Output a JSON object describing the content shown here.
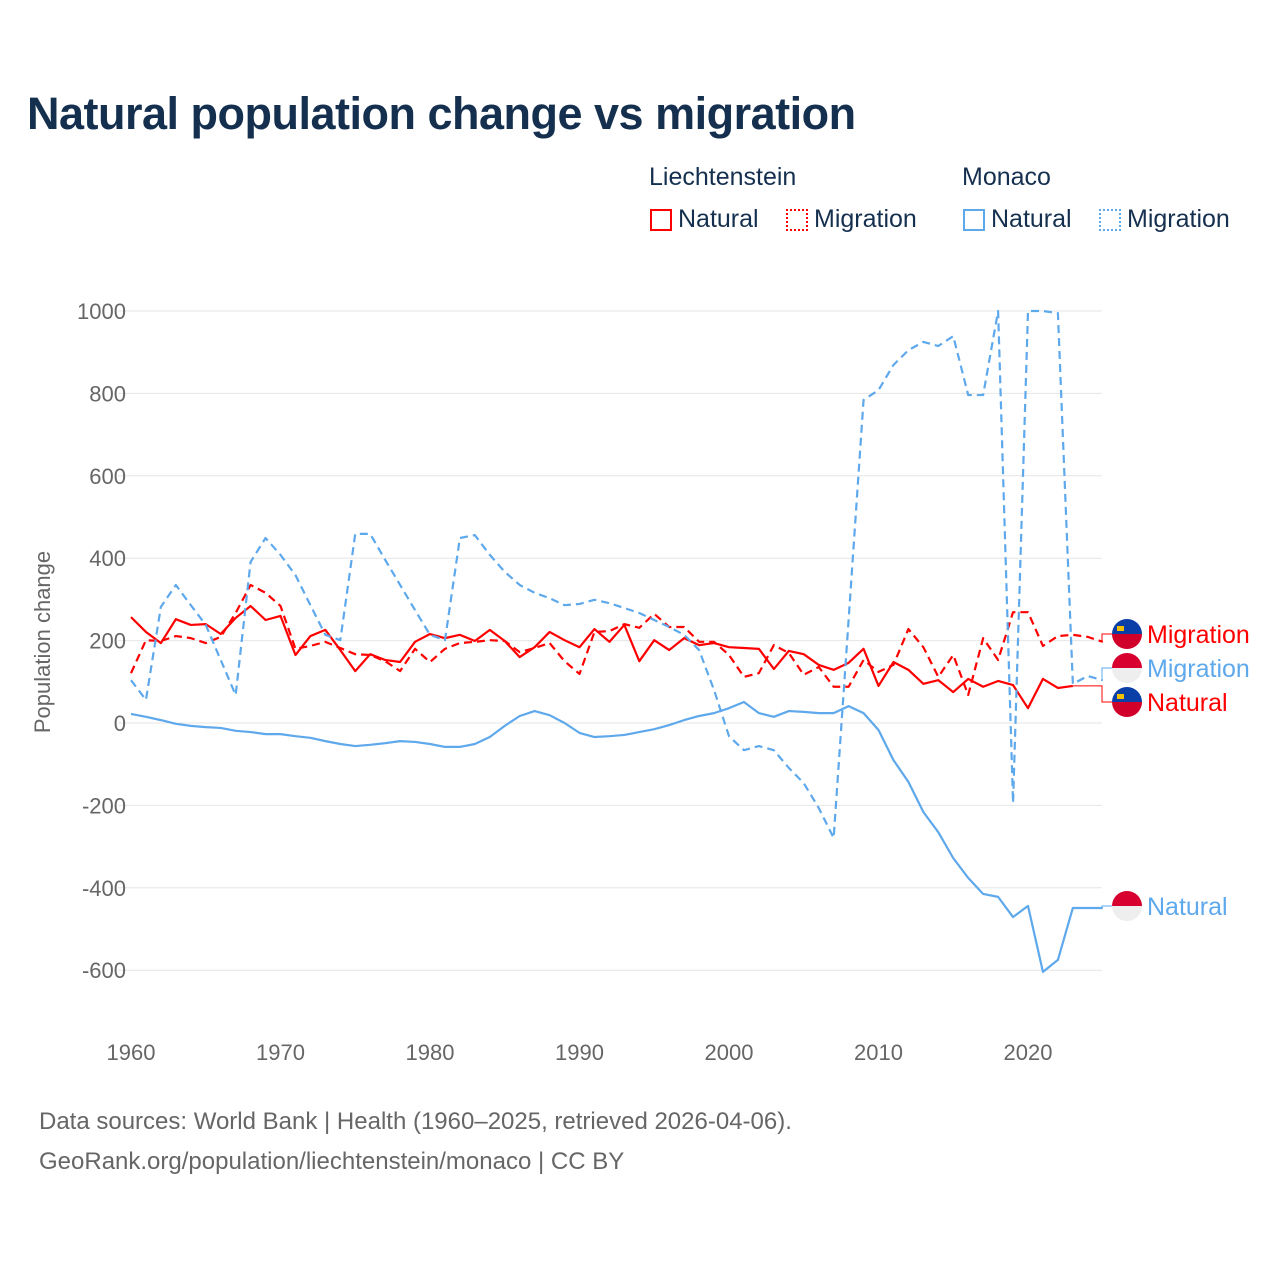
{
  "chart_data": {
    "type": "line",
    "title": "Natural population change vs migration",
    "ylabel": "Population change",
    "xlabel": "",
    "ylim": [
      -700,
      1000
    ],
    "xlim": [
      1960,
      2025
    ],
    "yticks": [
      1000,
      800,
      600,
      400,
      200,
      0,
      -200,
      -400,
      -600
    ],
    "xticks": [
      1960,
      1970,
      1980,
      1990,
      2000,
      2010,
      2020
    ],
    "grid": true,
    "legend_groups": [
      {
        "name": "Liechtenstein",
        "color": "#ff0000",
        "items": [
          "Natural",
          "Migration"
        ]
      },
      {
        "name": "Monaco",
        "color": "#5ea8ec",
        "items": [
          "Natural",
          "Migration"
        ]
      }
    ],
    "series": [
      {
        "country": "Liechtenstein",
        "name": "Natural",
        "color": "#ff0000",
        "dash": false,
        "start": 1960,
        "end_label": "Natural",
        "values": [
          257,
          221,
          194,
          252,
          238,
          240,
          216,
          255,
          284,
          250,
          260,
          165,
          211,
          226,
          177,
          126,
          167,
          153,
          148,
          197,
          216,
          206,
          214,
          199,
          226,
          199,
          160,
          184,
          221,
          201,
          184,
          228,
          197,
          238,
          150,
          201,
          177,
          206,
          189,
          194,
          184,
          182,
          180,
          131,
          175,
          167,
          141,
          129,
          146,
          180,
          90,
          148,
          129,
          95,
          104,
          75,
          107,
          88,
          102,
          92,
          36,
          107,
          85,
          90
        ]
      },
      {
        "country": "Liechtenstein",
        "name": "Migration",
        "color": "#ff0000",
        "dash": true,
        "start": 1960,
        "end_label": "Migration",
        "values": [
          121,
          201,
          199,
          211,
          206,
          194,
          209,
          267,
          335,
          316,
          284,
          180,
          187,
          197,
          182,
          167,
          165,
          150,
          126,
          180,
          148,
          180,
          194,
          197,
          201,
          199,
          172,
          182,
          194,
          150,
          119,
          221,
          223,
          240,
          231,
          265,
          233,
          233,
          197,
          197,
          165,
          112,
          121,
          189,
          170,
          117,
          136,
          88,
          88,
          153,
          124,
          141,
          228,
          184,
          112,
          165,
          68,
          206,
          153,
          269,
          269,
          187,
          211,
          214,
          209,
          197
        ]
      },
      {
        "country": "Monaco",
        "name": "Natural",
        "color": "#5ea8ec",
        "dash": false,
        "start": 1960,
        "end_label": "Natural",
        "values": [
          22,
          15,
          7,
          -2,
          -7,
          -10,
          -12,
          -19,
          -22,
          -27,
          -27,
          -32,
          -36,
          -44,
          -51,
          -56,
          -53,
          -49,
          -44,
          -46,
          -51,
          -58,
          -58,
          -51,
          -34,
          -7,
          17,
          29,
          19,
          0,
          -24,
          -34,
          -32,
          -29,
          -22,
          -15,
          -5,
          7,
          17,
          24,
          36,
          51,
          24,
          15,
          29,
          27,
          24,
          24,
          41,
          24,
          -17,
          -90,
          -143,
          -216,
          -265,
          -328,
          -376,
          -415,
          -422,
          -471,
          -444,
          -604,
          -575,
          -449,
          -449,
          -449
        ]
      },
      {
        "country": "Monaco",
        "name": "Migration",
        "color": "#5ea8ec",
        "dash": true,
        "start": 1960,
        "end_label": "Migration",
        "values": [
          104,
          56,
          282,
          335,
          286,
          238,
          153,
          68,
          391,
          449,
          408,
          359,
          286,
          214,
          201,
          459,
          459,
          396,
          335,
          274,
          214,
          201,
          449,
          456,
          408,
          367,
          335,
          316,
          303,
          286,
          289,
          299,
          291,
          279,
          267,
          250,
          233,
          214,
          177,
          80,
          -32,
          -66,
          -56,
          -66,
          -109,
          -146,
          -206,
          -279,
          250,
          784,
          808,
          869,
          905,
          925,
          915,
          939,
          796,
          796,
          1000,
          -194,
          1000,
          1000,
          995,
          95,
          114,
          104
        ]
      }
    ]
  },
  "legend": {
    "group1": "Liechtenstein",
    "group2": "Monaco",
    "natural": "Natural",
    "migration": "Migration"
  },
  "footer": {
    "line1": "Data sources: World Bank | Health (1960–2025, retrieved 2026-04-06).",
    "line2": "GeoRank.org/population/liechtenstein/monaco | CC BY"
  }
}
